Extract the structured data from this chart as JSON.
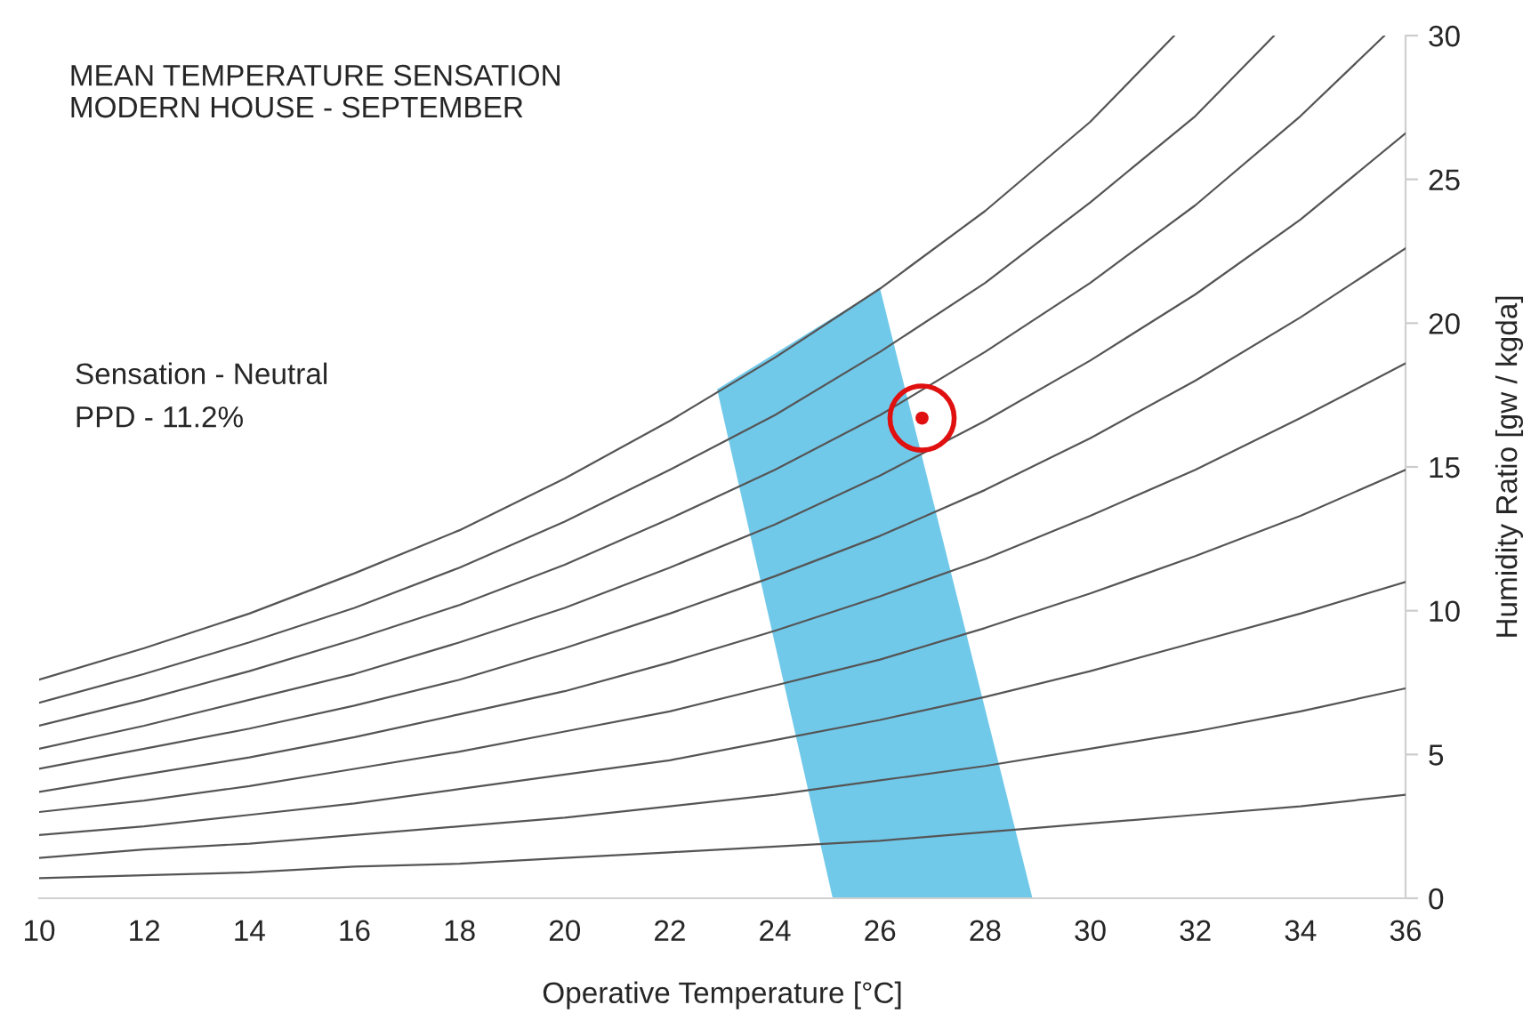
{
  "chart_data": {
    "type": "line",
    "title": "MEAN TEMPERATURE SENSATION",
    "subtitle": "MODERN HOUSE - SEPTEMBER",
    "xlabel": "Operative Temperature [°C]",
    "ylabel": "Humidity Ratio [gw / kgda]",
    "xlim": [
      10,
      36
    ],
    "xticks": [
      10,
      12,
      14,
      16,
      18,
      20,
      22,
      24,
      26,
      28,
      30,
      32,
      34,
      36
    ],
    "ylim": [
      0,
      30
    ],
    "yticks": [
      0,
      5,
      10,
      15,
      20,
      25,
      30
    ],
    "grid": false,
    "legend": false,
    "marker": "none",
    "line_style": "solid",
    "annotations": [
      "Sensation - Neutral",
      "PPD - 11.2%"
    ],
    "series": [
      {
        "type": "area",
        "color": "#71c9ea",
        "x": [
          22.9,
          26.0,
          28.9,
          25.1
        ],
        "values": [
          17.7,
          21.2,
          0,
          0
        ]
      },
      {
        "color": "#555555",
        "x": [
          10,
          12,
          14,
          16,
          18,
          20,
          22,
          24,
          26,
          28,
          30,
          32,
          34,
          36
        ],
        "values": [
          0.7,
          0.8,
          0.9,
          1.1,
          1.2,
          1.4,
          1.6,
          1.8,
          2.0,
          2.3,
          2.6,
          2.9,
          3.2,
          3.6
        ]
      },
      {
        "color": "#555555",
        "x": [
          10,
          12,
          14,
          16,
          18,
          20,
          22,
          24,
          26,
          28,
          30,
          32,
          34,
          36
        ],
        "values": [
          1.4,
          1.7,
          1.9,
          2.2,
          2.5,
          2.8,
          3.2,
          3.6,
          4.1,
          4.6,
          5.2,
          5.8,
          6.5,
          7.3
        ]
      },
      {
        "color": "#555555",
        "x": [
          10,
          12,
          14,
          16,
          18,
          20,
          22,
          24,
          26,
          28,
          30,
          32,
          34,
          36
        ],
        "values": [
          2.2,
          2.5,
          2.9,
          3.3,
          3.8,
          4.3,
          4.8,
          5.5,
          6.2,
          7.0,
          7.9,
          8.9,
          9.9,
          11.0
        ]
      },
      {
        "color": "#555555",
        "x": [
          10,
          12,
          14,
          16,
          18,
          20,
          22,
          24,
          26,
          28,
          30,
          32,
          34,
          36
        ],
        "values": [
          3.0,
          3.4,
          3.9,
          4.5,
          5.1,
          5.8,
          6.5,
          7.4,
          8.3,
          9.4,
          10.6,
          11.9,
          13.3,
          14.9
        ]
      },
      {
        "color": "#555555",
        "x": [
          10,
          12,
          14,
          16,
          18,
          20,
          22,
          24,
          26,
          28,
          30,
          32,
          34,
          36
        ],
        "values": [
          3.7,
          4.3,
          4.9,
          5.6,
          6.4,
          7.2,
          8.2,
          9.3,
          10.5,
          11.8,
          13.3,
          14.9,
          16.7,
          18.6
        ]
      },
      {
        "color": "#555555",
        "x": [
          10,
          12,
          14,
          16,
          18,
          20,
          22,
          24,
          26,
          28,
          30,
          32,
          34,
          36
        ],
        "values": [
          4.5,
          5.2,
          5.9,
          6.7,
          7.6,
          8.7,
          9.9,
          11.2,
          12.6,
          14.2,
          16.0,
          18.0,
          20.2,
          22.6
        ]
      },
      {
        "color": "#555555",
        "x": [
          10,
          12,
          14,
          16,
          18,
          20,
          22,
          24,
          26,
          28,
          30,
          32,
          34,
          36
        ],
        "values": [
          5.2,
          6.0,
          6.9,
          7.8,
          8.9,
          10.1,
          11.5,
          13.0,
          14.7,
          16.6,
          18.7,
          21.0,
          23.6,
          26.6
        ]
      },
      {
        "color": "#555555",
        "x": [
          10,
          12,
          14,
          16,
          18,
          20,
          22,
          24,
          26,
          28,
          30,
          32,
          34,
          35.6
        ],
        "values": [
          6.0,
          6.9,
          7.9,
          9.0,
          10.2,
          11.6,
          13.2,
          14.9,
          16.8,
          19.0,
          21.4,
          24.1,
          27.2,
          30
        ]
      },
      {
        "color": "#555555",
        "x": [
          10,
          12,
          14,
          16,
          18,
          20,
          22,
          24,
          26,
          28,
          30,
          32,
          33.5
        ],
        "values": [
          6.8,
          7.8,
          8.9,
          10.1,
          11.5,
          13.1,
          14.9,
          16.8,
          19.0,
          21.4,
          24.2,
          27.2,
          30
        ]
      },
      {
        "color": "#555555",
        "x": [
          10,
          12,
          14,
          16,
          18,
          20,
          22,
          24,
          26,
          28,
          30,
          31.6
        ],
        "values": [
          7.6,
          8.7,
          9.9,
          11.3,
          12.8,
          14.6,
          16.6,
          18.8,
          21.2,
          23.9,
          27.0,
          30
        ]
      },
      {
        "type": "scatter",
        "color": "#e01010",
        "marker": "circle",
        "x": [
          26.8
        ],
        "values": [
          16.7
        ]
      }
    ]
  }
}
